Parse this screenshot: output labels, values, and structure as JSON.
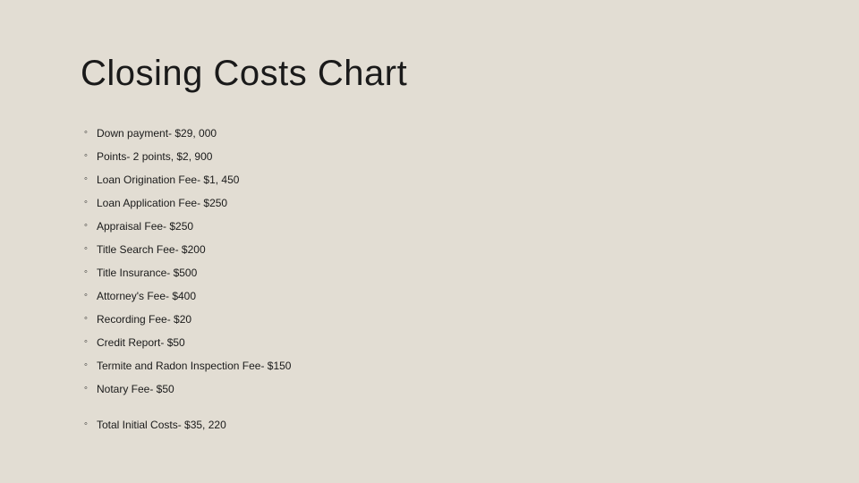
{
  "slide": {
    "title": "Closing Costs Chart",
    "background_color": "#e2ddd3",
    "text_color": "#1a1a1a",
    "title_fontsize": 40,
    "item_fontsize": 12,
    "items": [
      "Down payment- $29, 000",
      "Points- 2 points, $2, 900",
      "Loan Origination Fee- $1, 450",
      "Loan Application Fee- $250",
      "Appraisal Fee- $250",
      "Title Search Fee- $200",
      "Title Insurance- $500",
      "Attorney's Fee- $400",
      "Recording Fee- $20",
      "Credit Report- $50",
      "Termite and Radon Inspection Fee- $150",
      "Notary Fee- $50"
    ],
    "total": "Total Initial Costs- $35, 220"
  }
}
